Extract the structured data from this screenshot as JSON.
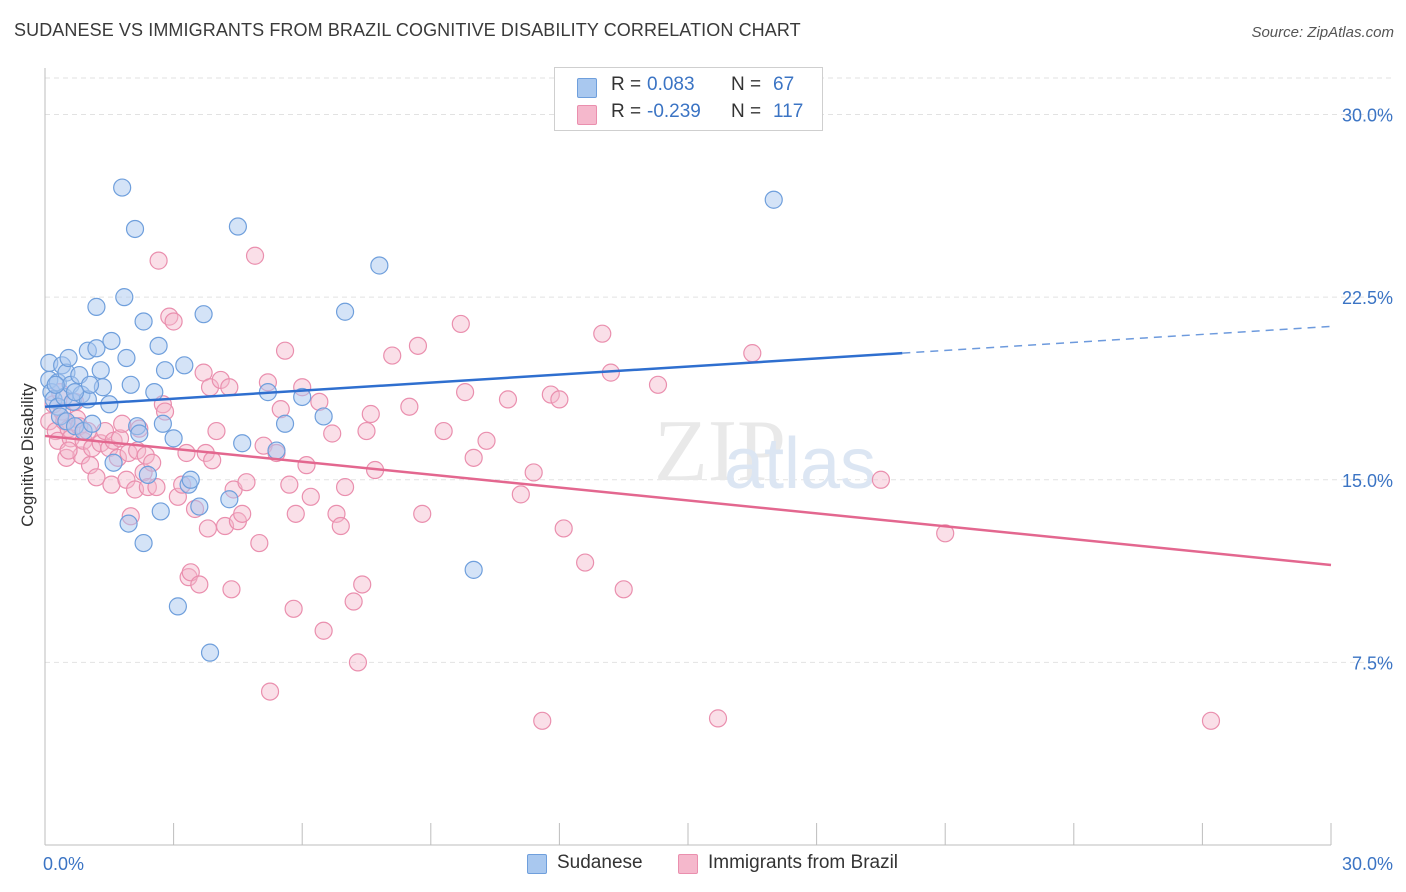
{
  "header": {
    "title": "SUDANESE VS IMMIGRANTS FROM BRAZIL COGNITIVE DISABILITY CORRELATION CHART",
    "source": "Source: ZipAtlas.com"
  },
  "legend": {
    "rows": [
      {
        "r_label": "R =",
        "r_value": "0.083",
        "n_label": "N =",
        "n_value": "67"
      },
      {
        "r_label": "R =",
        "r_value": "-0.239",
        "n_label": "N =",
        "n_value": "117"
      }
    ]
  },
  "bottom_legend": {
    "items": [
      {
        "label": "Sudanese"
      },
      {
        "label": "Immigrants from Brazil"
      }
    ]
  },
  "colors": {
    "sudanese_fill": "#a9c8ef",
    "sudanese_stroke": "#6f9fdc",
    "sudanese_line": "#2f6fcf",
    "brazil_fill": "#f5b8cc",
    "brazil_stroke": "#ea8fae",
    "brazil_line": "#e3678f",
    "tick_text": "#3b74c4",
    "grid": "#e2e2e2"
  },
  "chart_data": {
    "type": "scatter",
    "title": "SUDANESE VS IMMIGRANTS FROM BRAZIL COGNITIVE DISABILITY CORRELATION CHART",
    "xlabel": "",
    "ylabel": "Cognitive Disability",
    "xlim": [
      0,
      30
    ],
    "ylim": [
      0,
      31.5
    ],
    "x_tick_labels": [
      "0.0%",
      "30.0%"
    ],
    "y_ticks": [
      7.5,
      15.0,
      22.5,
      30.0
    ],
    "y_tick_labels": [
      "7.5%",
      "15.0%",
      "22.5%",
      "30.0%"
    ],
    "grid": true,
    "legend_position": "top-center",
    "watermark": "ZIPatlas",
    "series": [
      {
        "name": "Sudanese",
        "r": 0.083,
        "n": 67,
        "trend": {
          "x0": 0,
          "y0": 18.0,
          "x1": 20.0,
          "y1": 20.2,
          "dashed_to_x": 30,
          "dashed_to_y": 21.3
        },
        "points": [
          [
            0.1,
            19.8
          ],
          [
            0.1,
            19.1
          ],
          [
            0.15,
            18.6
          ],
          [
            0.2,
            18.3
          ],
          [
            0.3,
            19.0
          ],
          [
            0.3,
            18.0
          ],
          [
            0.35,
            17.6
          ],
          [
            0.4,
            19.7
          ],
          [
            0.45,
            18.4
          ],
          [
            0.5,
            19.4
          ],
          [
            0.5,
            17.4
          ],
          [
            0.55,
            20.0
          ],
          [
            0.6,
            18.9
          ],
          [
            0.65,
            18.2
          ],
          [
            0.7,
            17.2
          ],
          [
            0.8,
            19.3
          ],
          [
            0.85,
            18.5
          ],
          [
            0.9,
            17.0
          ],
          [
            1.0,
            20.3
          ],
          [
            1.0,
            18.3
          ],
          [
            1.1,
            17.3
          ],
          [
            1.2,
            22.1
          ],
          [
            1.2,
            20.4
          ],
          [
            1.3,
            19.5
          ],
          [
            1.35,
            18.8
          ],
          [
            1.5,
            18.1
          ],
          [
            1.55,
            20.7
          ],
          [
            1.6,
            15.7
          ],
          [
            1.8,
            27.0
          ],
          [
            1.85,
            22.5
          ],
          [
            1.9,
            20.0
          ],
          [
            1.95,
            13.2
          ],
          [
            2.0,
            18.9
          ],
          [
            2.1,
            25.3
          ],
          [
            2.15,
            17.2
          ],
          [
            2.2,
            16.9
          ],
          [
            2.3,
            21.5
          ],
          [
            2.3,
            12.4
          ],
          [
            2.4,
            15.2
          ],
          [
            2.55,
            18.6
          ],
          [
            2.65,
            20.5
          ],
          [
            2.7,
            13.7
          ],
          [
            2.75,
            17.3
          ],
          [
            2.8,
            19.5
          ],
          [
            3.0,
            16.7
          ],
          [
            3.1,
            9.8
          ],
          [
            3.25,
            19.7
          ],
          [
            3.35,
            14.8
          ],
          [
            3.6,
            13.9
          ],
          [
            3.7,
            21.8
          ],
          [
            3.85,
            7.9
          ],
          [
            4.3,
            14.2
          ],
          [
            4.5,
            25.4
          ],
          [
            4.6,
            16.5
          ],
          [
            5.2,
            18.6
          ],
          [
            5.4,
            16.2
          ],
          [
            5.6,
            17.3
          ],
          [
            6.0,
            18.4
          ],
          [
            6.5,
            17.6
          ],
          [
            7.0,
            21.9
          ],
          [
            7.8,
            23.8
          ],
          [
            10.0,
            11.3
          ],
          [
            17.0,
            26.5
          ],
          [
            0.25,
            18.9
          ],
          [
            0.7,
            18.6
          ],
          [
            1.05,
            18.9
          ],
          [
            3.4,
            15.0
          ]
        ]
      },
      {
        "name": "Immigrants from Brazil",
        "r": -0.239,
        "n": 117,
        "trend": {
          "x0": 0,
          "y0": 16.8,
          "x1": 30,
          "y1": 11.5
        },
        "points": [
          [
            0.1,
            17.4
          ],
          [
            0.2,
            18.1
          ],
          [
            0.25,
            17.0
          ],
          [
            0.3,
            16.6
          ],
          [
            0.35,
            18.6
          ],
          [
            0.4,
            17.8
          ],
          [
            0.45,
            17.4
          ],
          [
            0.5,
            15.9
          ],
          [
            0.55,
            17.1
          ],
          [
            0.6,
            16.7
          ],
          [
            0.7,
            18.2
          ],
          [
            0.75,
            17.5
          ],
          [
            0.8,
            17.2
          ],
          [
            0.85,
            16.0
          ],
          [
            0.9,
            16.6
          ],
          [
            1.0,
            17.0
          ],
          [
            1.05,
            15.6
          ],
          [
            1.1,
            16.3
          ],
          [
            1.2,
            15.1
          ],
          [
            1.3,
            16.5
          ],
          [
            1.4,
            17.0
          ],
          [
            1.5,
            16.3
          ],
          [
            1.55,
            14.8
          ],
          [
            1.6,
            16.6
          ],
          [
            1.7,
            15.9
          ],
          [
            1.75,
            16.7
          ],
          [
            1.8,
            17.3
          ],
          [
            1.9,
            15.0
          ],
          [
            1.95,
            16.1
          ],
          [
            2.0,
            13.5
          ],
          [
            2.1,
            14.6
          ],
          [
            2.15,
            16.2
          ],
          [
            2.2,
            17.1
          ],
          [
            2.3,
            15.3
          ],
          [
            2.35,
            16.0
          ],
          [
            2.4,
            14.7
          ],
          [
            2.5,
            15.7
          ],
          [
            2.6,
            14.7
          ],
          [
            2.65,
            24.0
          ],
          [
            2.75,
            18.1
          ],
          [
            2.8,
            17.8
          ],
          [
            2.9,
            21.7
          ],
          [
            3.0,
            21.5
          ],
          [
            3.1,
            14.3
          ],
          [
            3.2,
            14.8
          ],
          [
            3.3,
            16.1
          ],
          [
            3.35,
            11.0
          ],
          [
            3.4,
            11.2
          ],
          [
            3.5,
            13.8
          ],
          [
            3.6,
            10.7
          ],
          [
            3.7,
            19.4
          ],
          [
            3.75,
            16.1
          ],
          [
            3.8,
            13.0
          ],
          [
            3.85,
            18.8
          ],
          [
            3.9,
            15.8
          ],
          [
            4.0,
            17.0
          ],
          [
            4.1,
            19.1
          ],
          [
            4.2,
            13.1
          ],
          [
            4.3,
            18.8
          ],
          [
            4.35,
            10.5
          ],
          [
            4.4,
            14.6
          ],
          [
            4.5,
            13.3
          ],
          [
            4.6,
            13.6
          ],
          [
            4.7,
            14.9
          ],
          [
            4.9,
            24.2
          ],
          [
            5.0,
            12.4
          ],
          [
            5.1,
            16.4
          ],
          [
            5.2,
            19.0
          ],
          [
            5.25,
            6.3
          ],
          [
            5.4,
            16.1
          ],
          [
            5.5,
            17.9
          ],
          [
            5.6,
            20.3
          ],
          [
            5.7,
            14.8
          ],
          [
            5.8,
            9.7
          ],
          [
            5.85,
            13.6
          ],
          [
            6.0,
            18.8
          ],
          [
            6.1,
            15.6
          ],
          [
            6.2,
            14.3
          ],
          [
            6.4,
            18.2
          ],
          [
            6.5,
            8.8
          ],
          [
            6.7,
            16.9
          ],
          [
            6.8,
            13.6
          ],
          [
            6.9,
            13.1
          ],
          [
            7.0,
            14.7
          ],
          [
            7.2,
            10.0
          ],
          [
            7.3,
            7.5
          ],
          [
            7.4,
            10.7
          ],
          [
            7.5,
            17.0
          ],
          [
            7.6,
            17.7
          ],
          [
            7.7,
            15.4
          ],
          [
            8.1,
            20.1
          ],
          [
            8.5,
            18.0
          ],
          [
            8.7,
            20.5
          ],
          [
            8.8,
            13.6
          ],
          [
            9.3,
            17.0
          ],
          [
            9.7,
            21.4
          ],
          [
            9.8,
            18.6
          ],
          [
            10.0,
            15.9
          ],
          [
            10.3,
            16.6
          ],
          [
            10.8,
            18.3
          ],
          [
            11.1,
            14.4
          ],
          [
            11.4,
            15.3
          ],
          [
            11.6,
            5.1
          ],
          [
            11.8,
            18.5
          ],
          [
            12.0,
            18.3
          ],
          [
            12.1,
            13.0
          ],
          [
            12.6,
            11.6
          ],
          [
            13.0,
            21.0
          ],
          [
            13.2,
            19.4
          ],
          [
            13.5,
            10.5
          ],
          [
            14.3,
            18.9
          ],
          [
            15.7,
            5.2
          ],
          [
            16.5,
            20.2
          ],
          [
            19.5,
            15.0
          ],
          [
            21.0,
            12.8
          ],
          [
            27.2,
            5.1
          ],
          [
            0.55,
            16.2
          ]
        ]
      }
    ]
  }
}
